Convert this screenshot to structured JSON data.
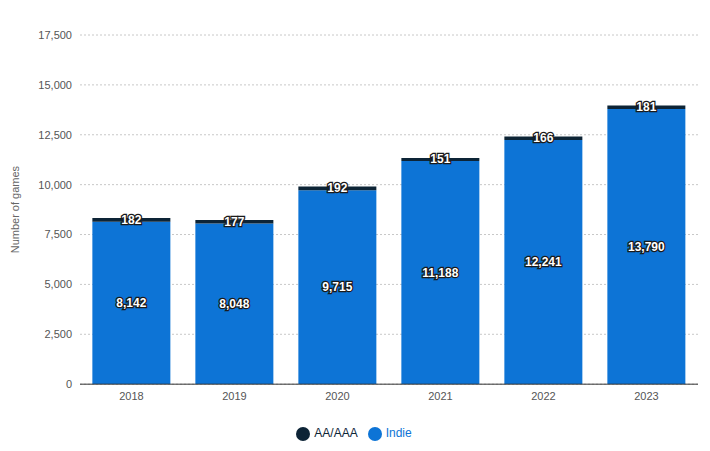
{
  "chart_data": {
    "type": "bar",
    "stacked": true,
    "data_labels": true,
    "grid": true,
    "legend": "bottom",
    "y_label": "Number of games",
    "categories": [
      "2018",
      "2019",
      "2020",
      "2021",
      "2022",
      "2023"
    ],
    "series": [
      {
        "name": "Indie",
        "color": "#0d74d6",
        "values": [
          8142,
          8048,
          9715,
          11188,
          12241,
          13790
        ],
        "value_labels": [
          "8,142",
          "8,048",
          "9,715",
          "11,188",
          "12,241",
          "13,790"
        ]
      },
      {
        "name": "AA/AAA",
        "color": "#0d2436",
        "values": [
          182,
          177,
          192,
          151,
          166,
          181
        ],
        "value_labels": [
          "182",
          "177",
          "192",
          "151",
          "166",
          "181"
        ]
      }
    ],
    "ylim": [
      0,
      17500
    ],
    "yticks": [
      0,
      {
        "value": 2500,
        "label": "2,500"
      },
      {
        "value": 5000,
        "label": "5,000"
      },
      {
        "value": 7500,
        "label": "7,500"
      },
      {
        "value": 10000,
        "label": "10,000"
      },
      {
        "value": 12500,
        "label": "12,500"
      },
      {
        "value": 15000,
        "label": "15,000"
      },
      {
        "value": 17500,
        "label": "17,500"
      }
    ]
  }
}
